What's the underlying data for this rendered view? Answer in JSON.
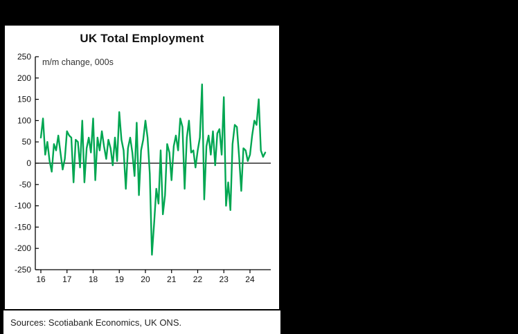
{
  "chart_data": {
    "type": "line",
    "title": "UK Total Employment",
    "subtitle": "m/m change, 000s",
    "source": "Sources: Scotiabank Economics, UK ONS.",
    "frequency": "monthly",
    "x_start": "2016-01",
    "x_tick_labels": [
      "16",
      "17",
      "18",
      "19",
      "20",
      "21",
      "22",
      "23",
      "24"
    ],
    "y_ticks": [
      250,
      200,
      150,
      100,
      50,
      0,
      -50,
      -100,
      -150,
      -200,
      -250
    ],
    "ylim": [
      -250,
      250
    ],
    "grid": false,
    "zero_line": true,
    "legend_position": "none",
    "line_color": "#00a651",
    "axis_color": "#000000",
    "series": [
      {
        "name": "UK total employment m/m change (000s)",
        "values": [
          60,
          105,
          20,
          50,
          5,
          -20,
          45,
          30,
          65,
          25,
          -15,
          10,
          75,
          65,
          60,
          -45,
          55,
          50,
          -10,
          100,
          -45,
          35,
          60,
          25,
          105,
          -40,
          60,
          30,
          75,
          40,
          10,
          55,
          35,
          -5,
          60,
          5,
          120,
          55,
          30,
          -60,
          35,
          60,
          25,
          -30,
          95,
          -75,
          30,
          55,
          100,
          60,
          -25,
          -215,
          -140,
          -60,
          -95,
          30,
          -120,
          -75,
          45,
          25,
          -40,
          40,
          65,
          30,
          105,
          85,
          -60,
          60,
          100,
          25,
          30,
          -10,
          30,
          60,
          185,
          -85,
          40,
          65,
          20,
          75,
          -5,
          70,
          80,
          20,
          155,
          -100,
          -45,
          -110,
          45,
          90,
          85,
          15,
          -65,
          35,
          30,
          5,
          20,
          65,
          100,
          90,
          150,
          30,
          15,
          25
        ]
      }
    ]
  }
}
